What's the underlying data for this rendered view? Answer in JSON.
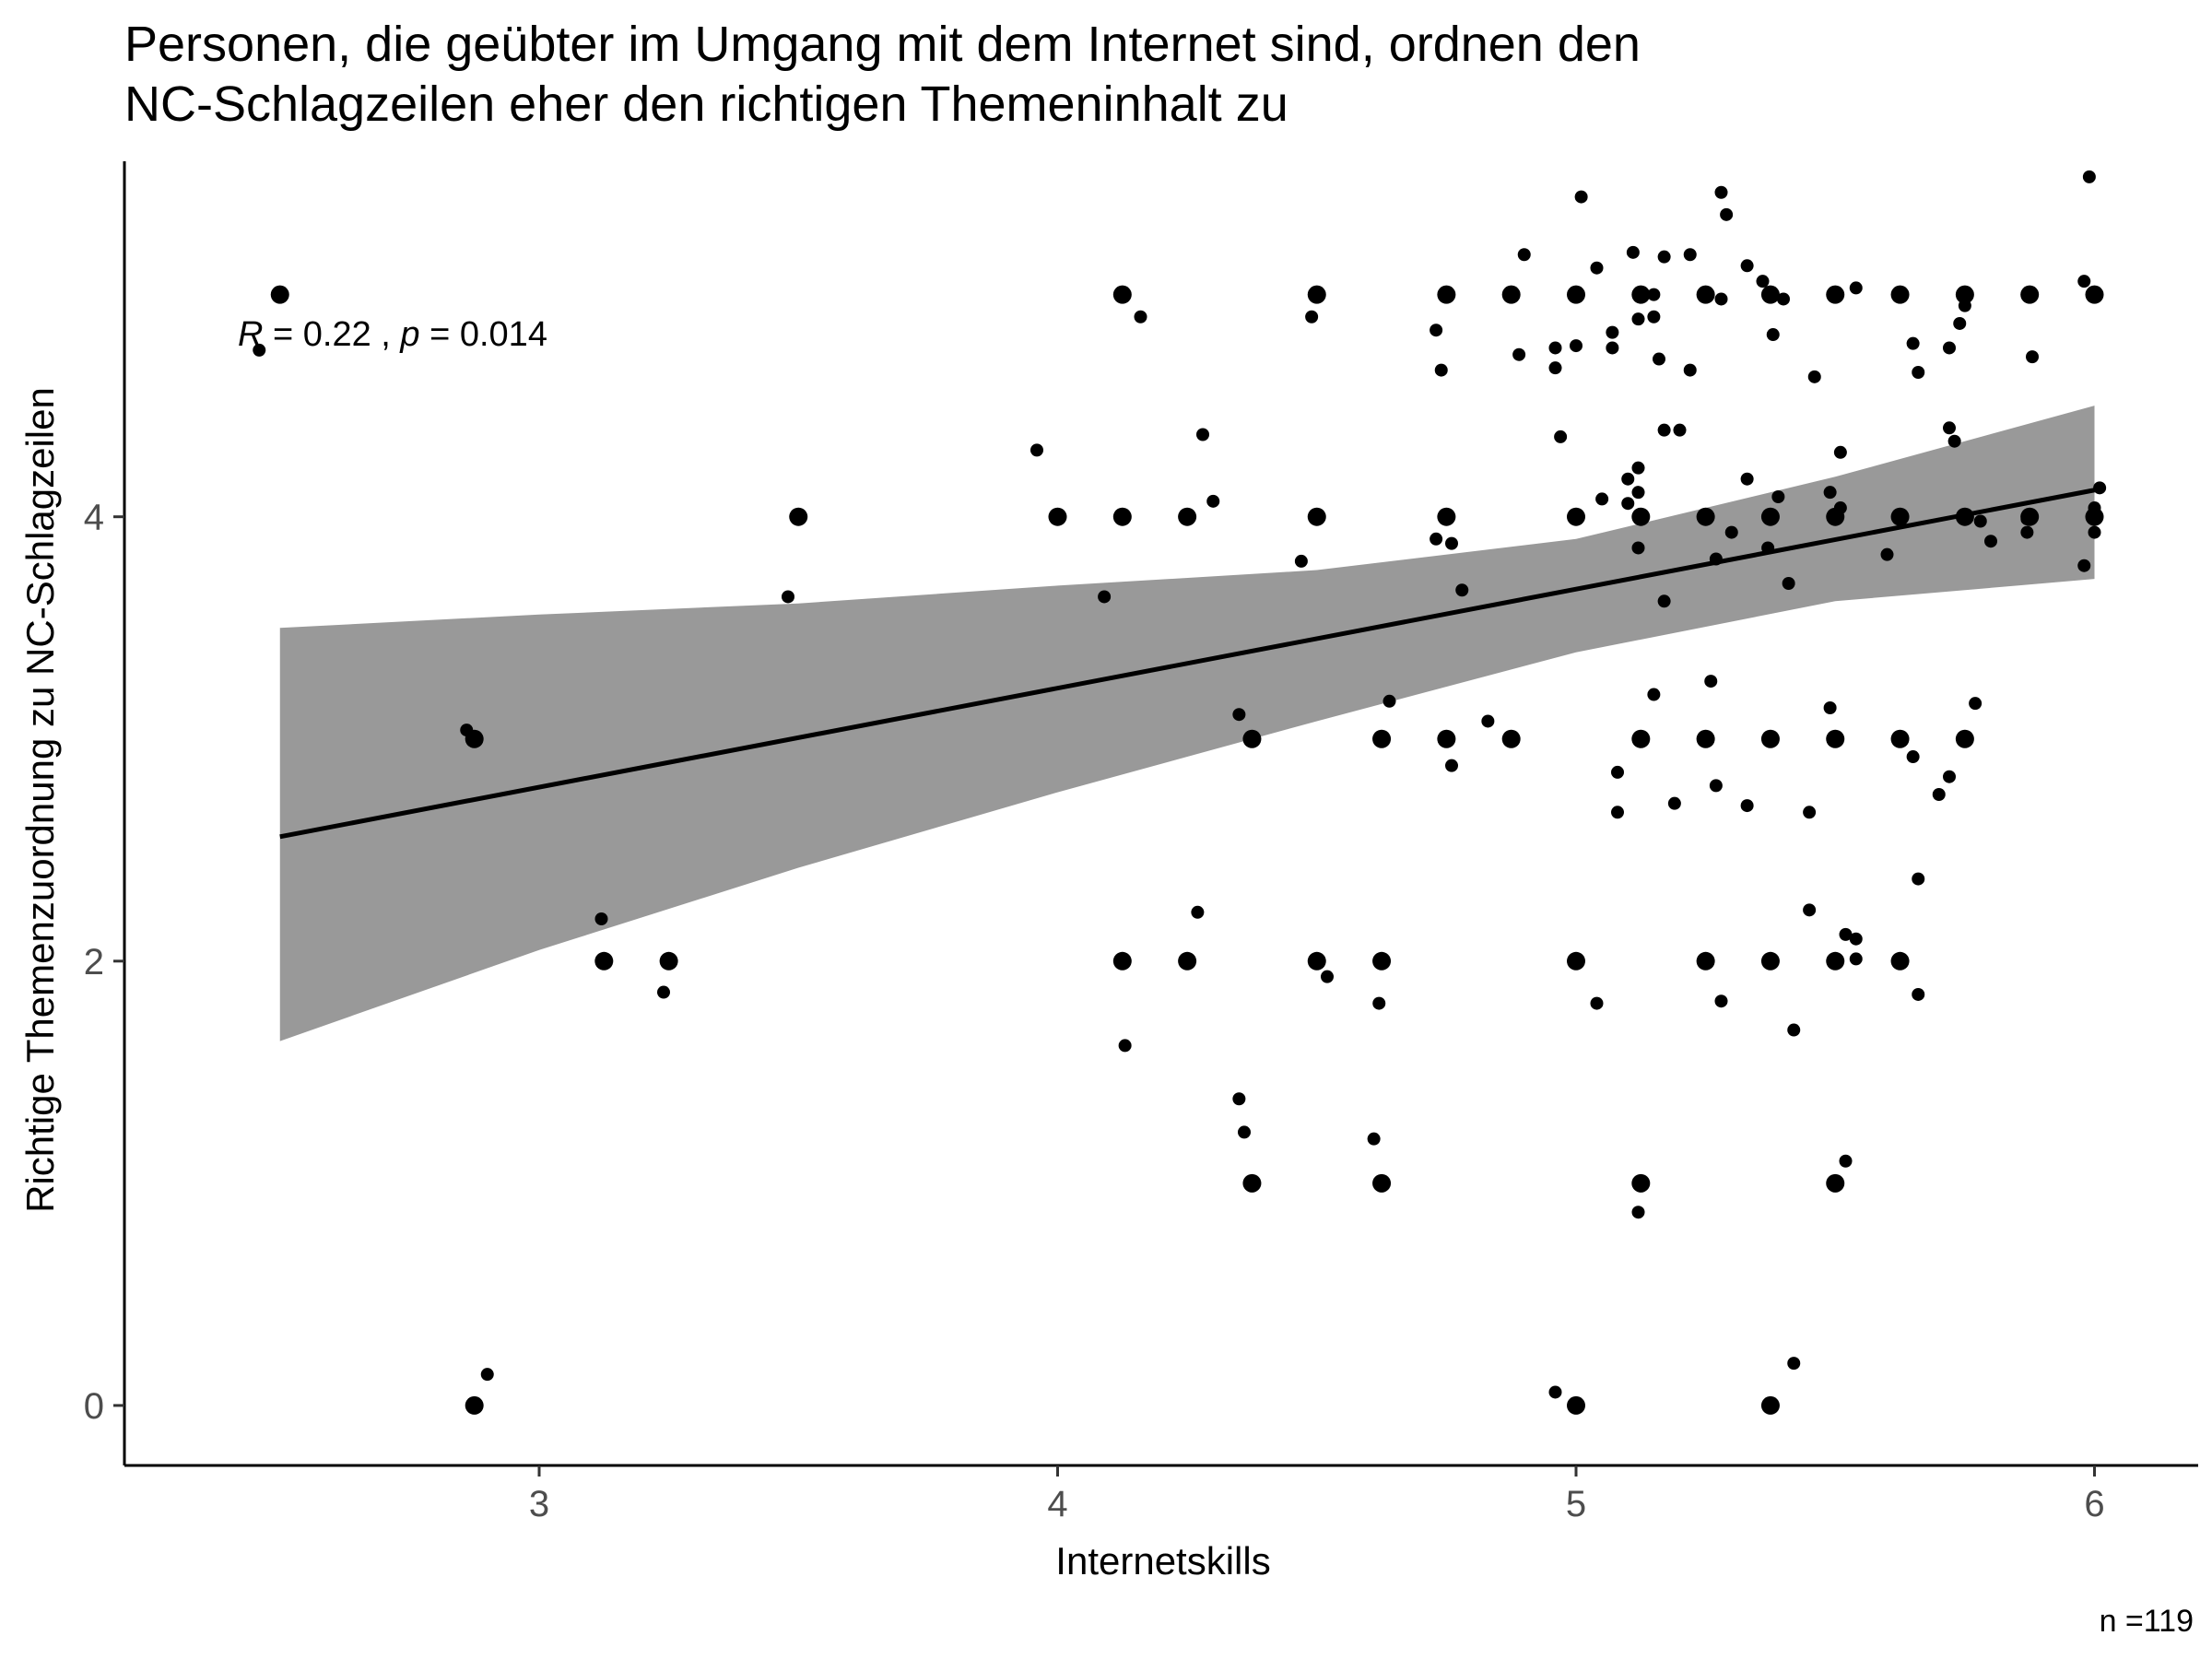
{
  "chart_data": {
    "type": "scatter",
    "title": "Personen, die geübter im Umgang mit dem Internet sind, ordnen den NC-Schlagzeilen eher den richtigen Themeninhalt zu",
    "title_lines": [
      "Personen, die geübter im Umgang mit dem Internet sind, ordnen den",
      "NC-Schlagzeilen eher den richtigen Themeninhalt zu"
    ],
    "xlabel": "Internetskills",
    "ylabel": "Richtige Themenzuordnung zu NC-Schlagzeilen",
    "caption": "n =119",
    "stat_label": {
      "R": "0.22",
      "p": "0.014"
    },
    "xlim": [
      2.2,
      6.2
    ],
    "ylim": [
      -0.27,
      5.6
    ],
    "x_ticks": [
      3,
      4,
      5,
      6
    ],
    "y_ticks": [
      0,
      2,
      4
    ],
    "grid": false,
    "point_color": "#000000",
    "band_color": "#999999",
    "regression": {
      "x_start": 2.5,
      "x_end": 6.0,
      "y_start": 2.56,
      "y_end": 4.12,
      "ci_lower": [
        [
          2.5,
          1.64
        ],
        [
          3.0,
          2.05
        ],
        [
          3.5,
          2.42
        ],
        [
          4.0,
          2.76
        ],
        [
          4.5,
          3.08
        ],
        [
          5.0,
          3.39
        ],
        [
          5.5,
          3.62
        ],
        [
          6.0,
          3.72
        ]
      ],
      "ci_upper": [
        [
          2.5,
          3.5
        ],
        [
          3.0,
          3.56
        ],
        [
          3.5,
          3.61
        ],
        [
          4.0,
          3.69
        ],
        [
          4.5,
          3.76
        ],
        [
          5.0,
          3.9
        ],
        [
          5.5,
          4.18
        ],
        [
          6.0,
          4.5
        ]
      ]
    },
    "points_large": [
      [
        2.5,
        5
      ],
      [
        2.875,
        3
      ],
      [
        2.875,
        0
      ],
      [
        3.125,
        2
      ],
      [
        3.25,
        2
      ],
      [
        3.5,
        4
      ],
      [
        4.0,
        4
      ],
      [
        4.125,
        5
      ],
      [
        4.125,
        4
      ],
      [
        4.125,
        2
      ],
      [
        4.25,
        4
      ],
      [
        4.25,
        2
      ],
      [
        4.375,
        3
      ],
      [
        4.375,
        1
      ],
      [
        4.5,
        5
      ],
      [
        4.5,
        4
      ],
      [
        4.5,
        2
      ],
      [
        4.625,
        3
      ],
      [
        4.625,
        2
      ],
      [
        4.625,
        1
      ],
      [
        4.75,
        5
      ],
      [
        4.75,
        4
      ],
      [
        4.75,
        3
      ],
      [
        4.875,
        5
      ],
      [
        4.875,
        3
      ],
      [
        5.0,
        5
      ],
      [
        5.0,
        4
      ],
      [
        5.0,
        2
      ],
      [
        5.0,
        0
      ],
      [
        5.125,
        5
      ],
      [
        5.125,
        4
      ],
      [
        5.125,
        3
      ],
      [
        5.125,
        1
      ],
      [
        5.25,
        5
      ],
      [
        5.25,
        4
      ],
      [
        5.25,
        3
      ],
      [
        5.25,
        2
      ],
      [
        5.375,
        5
      ],
      [
        5.375,
        4
      ],
      [
        5.375,
        3
      ],
      [
        5.375,
        2
      ],
      [
        5.375,
        0
      ],
      [
        5.5,
        5
      ],
      [
        5.5,
        4
      ],
      [
        5.5,
        3
      ],
      [
        5.5,
        2
      ],
      [
        5.5,
        1
      ],
      [
        5.625,
        5
      ],
      [
        5.625,
        4
      ],
      [
        5.625,
        3
      ],
      [
        5.625,
        2
      ],
      [
        5.75,
        5
      ],
      [
        5.75,
        4
      ],
      [
        5.75,
        3
      ],
      [
        5.875,
        5
      ],
      [
        5.875,
        4
      ],
      [
        6.0,
        5
      ],
      [
        6.0,
        4
      ]
    ],
    "points_small": [
      [
        2.46,
        4.75
      ],
      [
        2.86,
        3.04
      ],
      [
        2.9,
        0.14
      ],
      [
        3.12,
        2.19
      ],
      [
        3.24,
        1.86
      ],
      [
        3.48,
        3.64
      ],
      [
        3.96,
        4.3
      ],
      [
        4.09,
        3.64
      ],
      [
        4.13,
        1.62
      ],
      [
        4.16,
        4.9
      ],
      [
        4.27,
        2.22
      ],
      [
        4.28,
        4.37
      ],
      [
        4.3,
        4.07
      ],
      [
        4.35,
        1.38
      ],
      [
        4.35,
        3.11
      ],
      [
        4.36,
        1.23
      ],
      [
        4.47,
        3.8
      ],
      [
        4.49,
        4.9
      ],
      [
        4.52,
        1.93
      ],
      [
        4.61,
        1.2
      ],
      [
        4.62,
        1.81
      ],
      [
        4.64,
        3.17
      ],
      [
        4.73,
        4.84
      ],
      [
        4.73,
        3.9
      ],
      [
        4.74,
        4.66
      ],
      [
        4.76,
        3.88
      ],
      [
        4.76,
        2.88
      ],
      [
        4.78,
        3.67
      ],
      [
        4.83,
        3.08
      ],
      [
        4.89,
        4.73
      ],
      [
        4.9,
        5.18
      ],
      [
        4.96,
        4.76
      ],
      [
        4.96,
        4.67
      ],
      [
        4.96,
        0.06
      ],
      [
        4.97,
        4.36
      ],
      [
        5.0,
        4.77
      ],
      [
        5.01,
        5.44
      ],
      [
        5.04,
        5.12
      ],
      [
        5.04,
        1.81
      ],
      [
        5.05,
        4.08
      ],
      [
        5.07,
        4.83
      ],
      [
        5.07,
        4.76
      ],
      [
        5.08,
        2.85
      ],
      [
        5.08,
        2.67
      ],
      [
        5.1,
        4.17
      ],
      [
        5.1,
        4.06
      ],
      [
        5.11,
        5.19
      ],
      [
        5.12,
        4.22
      ],
      [
        5.12,
        4.11
      ],
      [
        5.12,
        3.86
      ],
      [
        5.12,
        4.89
      ],
      [
        5.12,
        0.87
      ],
      [
        5.15,
        4.9
      ],
      [
        5.15,
        5.0
      ],
      [
        5.15,
        3.2
      ],
      [
        5.16,
        4.71
      ],
      [
        5.17,
        5.17
      ],
      [
        5.17,
        4.39
      ],
      [
        5.17,
        3.62
      ],
      [
        5.19,
        2.71
      ],
      [
        5.2,
        4.39
      ],
      [
        5.22,
        5.18
      ],
      [
        5.22,
        4.66
      ],
      [
        5.26,
        3.26
      ],
      [
        5.27,
        3.81
      ],
      [
        5.27,
        2.79
      ],
      [
        5.28,
        5.46
      ],
      [
        5.28,
        4.98
      ],
      [
        5.28,
        1.82
      ],
      [
        5.29,
        5.36
      ],
      [
        5.3,
        3.93
      ],
      [
        5.33,
        5.13
      ],
      [
        5.33,
        4.17
      ],
      [
        5.33,
        2.7
      ],
      [
        5.36,
        5.06
      ],
      [
        5.37,
        3.86
      ],
      [
        5.38,
        4.82
      ],
      [
        5.39,
        4.09
      ],
      [
        5.4,
        4.98
      ],
      [
        5.41,
        3.7
      ],
      [
        5.42,
        0.19
      ],
      [
        5.42,
        1.69
      ],
      [
        5.45,
        2.67
      ],
      [
        5.45,
        2.23
      ],
      [
        5.46,
        4.63
      ],
      [
        5.49,
        3.14
      ],
      [
        5.49,
        4.11
      ],
      [
        5.51,
        4.29
      ],
      [
        5.51,
        4.04
      ],
      [
        5.52,
        2.12
      ],
      [
        5.52,
        1.1
      ],
      [
        5.54,
        5.03
      ],
      [
        5.54,
        2.1
      ],
      [
        5.54,
        2.01
      ],
      [
        5.6,
        3.83
      ],
      [
        5.65,
        4.78
      ],
      [
        5.65,
        2.92
      ],
      [
        5.66,
        4.65
      ],
      [
        5.66,
        2.37
      ],
      [
        5.66,
        1.85
      ],
      [
        5.7,
        2.75
      ],
      [
        5.72,
        4.76
      ],
      [
        5.72,
        4.4
      ],
      [
        5.72,
        2.83
      ],
      [
        5.73,
        4.34
      ],
      [
        5.74,
        4.87
      ],
      [
        5.75,
        4.95
      ],
      [
        5.77,
        3.16
      ],
      [
        5.78,
        3.98
      ],
      [
        5.8,
        3.89
      ],
      [
        5.87,
        3.99
      ],
      [
        5.87,
        3.93
      ],
      [
        5.88,
        4.72
      ],
      [
        5.98,
        5.06
      ],
      [
        5.98,
        3.78
      ],
      [
        5.99,
        5.53
      ],
      [
        6.0,
        3.93
      ],
      [
        6.0,
        4.04
      ],
      [
        6.01,
        4.13
      ]
    ]
  }
}
